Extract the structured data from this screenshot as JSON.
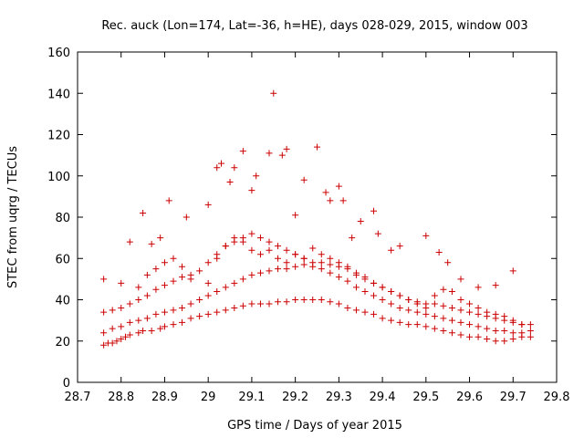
{
  "chart_data": {
    "type": "scatter",
    "title": "Rec. auck (Lon=174, Lat=-36, h=HE), days 028-029, 2015, window 003",
    "xlabel": "GPS time / Days of year 2015",
    "ylabel": "STEC from uqrg / TECUs",
    "xlim": [
      28.7,
      29.8
    ],
    "ylim": [
      0,
      160
    ],
    "xticks": [
      "28.7",
      "28.8",
      "28.9",
      "29",
      "29.1",
      "29.2",
      "29.3",
      "29.4",
      "29.5",
      "29.6",
      "29.7",
      "29.8"
    ],
    "yticks": [
      "0",
      "20",
      "40",
      "60",
      "80",
      "100",
      "120",
      "140",
      "160"
    ],
    "marker": "+",
    "color": "#cc0000",
    "grid": false,
    "legend": "none",
    "series": [
      {
        "x": [
          28.76,
          28.77,
          28.78,
          28.79,
          28.8,
          28.81,
          28.82,
          28.84,
          28.85,
          28.87,
          28.89,
          28.9,
          28.92,
          28.94,
          28.96,
          28.98,
          29.0,
          29.02,
          29.04,
          29.06,
          29.08,
          29.1,
          29.12,
          29.14,
          29.16,
          29.18,
          29.2,
          29.22,
          29.24,
          29.26,
          29.28,
          29.3,
          29.32,
          29.34,
          29.36,
          29.38,
          29.4,
          29.42,
          29.44,
          29.46,
          29.48,
          29.5,
          29.52,
          29.54,
          29.56,
          29.58,
          29.6,
          29.62,
          29.64,
          29.66,
          29.68,
          29.7,
          29.72,
          29.74
        ],
        "y": [
          18,
          19,
          19,
          20,
          21,
          22,
          23,
          24,
          25,
          25,
          26,
          27,
          28,
          29,
          31,
          32,
          33,
          34,
          35,
          36,
          37,
          38,
          38,
          38,
          39,
          39,
          40,
          40,
          40,
          40,
          39,
          38,
          36,
          35,
          34,
          33,
          31,
          30,
          29,
          28,
          28,
          27,
          26,
          25,
          24,
          23,
          22,
          22,
          21,
          20,
          20,
          21,
          22,
          22
        ]
      },
      {
        "x": [
          28.76,
          28.78,
          28.8,
          28.82,
          28.84,
          28.86,
          28.88,
          28.9,
          28.92,
          28.94,
          28.96,
          28.98,
          29.0,
          29.02,
          29.04,
          29.06,
          29.08,
          29.1,
          29.12,
          29.14,
          29.16,
          29.18,
          29.2,
          29.22,
          29.24,
          29.26,
          29.28,
          29.3,
          29.32,
          29.34,
          29.36,
          29.38,
          29.4,
          29.42,
          29.44,
          29.46,
          29.48,
          29.5,
          29.52,
          29.54,
          29.56,
          29.58,
          29.6,
          29.62,
          29.64,
          29.66,
          29.68,
          29.7,
          29.72,
          29.74
        ],
        "y": [
          24,
          26,
          27,
          29,
          30,
          31,
          33,
          34,
          35,
          36,
          38,
          40,
          42,
          44,
          46,
          48,
          50,
          52,
          53,
          54,
          55,
          55,
          56,
          57,
          56,
          55,
          53,
          51,
          49,
          46,
          44,
          42,
          40,
          38,
          36,
          35,
          34,
          33,
          32,
          31,
          30,
          29,
          28,
          27,
          26,
          25,
          25,
          24,
          24,
          25
        ]
      },
      {
        "x": [
          28.76,
          28.78,
          28.8,
          28.82,
          28.84,
          28.86,
          28.88,
          28.9,
          28.92,
          28.94,
          28.96,
          28.98,
          29.0,
          29.02,
          29.04,
          29.06,
          29.08,
          29.1,
          29.12,
          29.14,
          29.16,
          29.18,
          29.2,
          29.22,
          29.24,
          29.26,
          29.28,
          29.3,
          29.32,
          29.34,
          29.36,
          29.38,
          29.4,
          29.42,
          29.44,
          29.46,
          29.48,
          29.5,
          29.52,
          29.54,
          29.56,
          29.58,
          29.6,
          29.62,
          29.64,
          29.66,
          29.68,
          29.7,
          29.72,
          29.74
        ],
        "y": [
          34,
          35,
          36,
          38,
          40,
          42,
          45,
          47,
          49,
          51,
          52,
          54,
          58,
          62,
          66,
          68,
          70,
          72,
          70,
          68,
          66,
          64,
          62,
          60,
          58,
          58,
          57,
          56,
          55,
          53,
          51,
          48,
          46,
          44,
          42,
          40,
          39,
          38,
          38,
          37,
          36,
          35,
          34,
          33,
          32,
          31,
          30,
          29,
          28,
          28
        ]
      },
      {
        "x": [
          28.76,
          28.8,
          28.84,
          28.86,
          28.88,
          28.9,
          28.92,
          28.94,
          28.96,
          29.0,
          29.02,
          29.04,
          29.06,
          29.08,
          29.1,
          29.12,
          29.14,
          29.16,
          29.18,
          29.2,
          29.22,
          29.24,
          29.26,
          29.28,
          29.3,
          29.32,
          29.34,
          29.36,
          29.38,
          29.4,
          29.42,
          29.44,
          29.46,
          29.48,
          29.5,
          29.52,
          29.54,
          29.56,
          29.58,
          29.6,
          29.62,
          29.64,
          29.66,
          29.68,
          29.7,
          29.72
        ],
        "y": [
          50,
          48,
          46,
          52,
          55,
          58,
          60,
          56,
          50,
          48,
          60,
          66,
          70,
          68,
          64,
          62,
          64,
          60,
          58,
          62,
          60,
          65,
          62,
          60,
          58,
          56,
          52,
          50,
          48,
          46,
          44,
          42,
          40,
          38,
          36,
          42,
          45,
          44,
          40,
          38,
          36,
          34,
          33,
          32,
          30,
          28
        ]
      },
      {
        "x": [
          28.82,
          28.85,
          28.87,
          28.89,
          28.91,
          28.95,
          29.0,
          29.02,
          29.03,
          29.05,
          29.06,
          29.08,
          29.1,
          29.11,
          29.14,
          29.15,
          29.17,
          29.18,
          29.2,
          29.22,
          29.25,
          29.27,
          29.28,
          29.3,
          29.31,
          29.33,
          29.35,
          29.38,
          29.39,
          29.42,
          29.44,
          29.5,
          29.53,
          29.55,
          29.58,
          29.62,
          29.66,
          29.7
        ],
        "y": [
          68,
          82,
          67,
          70,
          88,
          80,
          86,
          104,
          106,
          97,
          104,
          112,
          93,
          100,
          111,
          140,
          110,
          113,
          81,
          98,
          114,
          92,
          88,
          95,
          88,
          70,
          78,
          83,
          72,
          64,
          66,
          71,
          63,
          58,
          50,
          46,
          47,
          54
        ]
      }
    ]
  }
}
